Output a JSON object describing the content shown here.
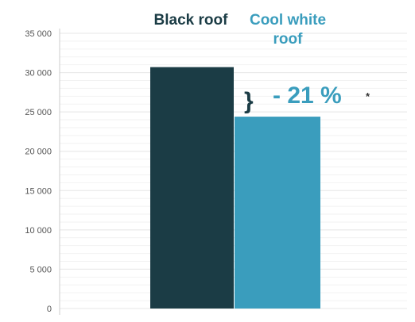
{
  "chart_data": {
    "type": "bar",
    "categories": [
      "Black roof",
      "Cool white roof"
    ],
    "category_lines": [
      [
        "Black roof"
      ],
      [
        "Cool white",
        "roof"
      ]
    ],
    "values": [
      30700,
      24400
    ],
    "ylim": [
      0,
      35000
    ],
    "yticks": [
      0,
      5000,
      10000,
      15000,
      20000,
      25000,
      30000,
      35000
    ],
    "ytick_labels": [
      "0",
      "5 000",
      "10 000",
      "15 000",
      "20 000",
      "25 000",
      "30 000",
      "35 000"
    ],
    "grid": true,
    "legend": "labels above bars",
    "annotation": {
      "text": "- 21 %",
      "marker": "*",
      "bracket": "}"
    },
    "colors": [
      "#1b3c45",
      "#3a9dbd"
    ],
    "axis_color": "#cccccc",
    "grid_color": "#e7e7e7"
  }
}
